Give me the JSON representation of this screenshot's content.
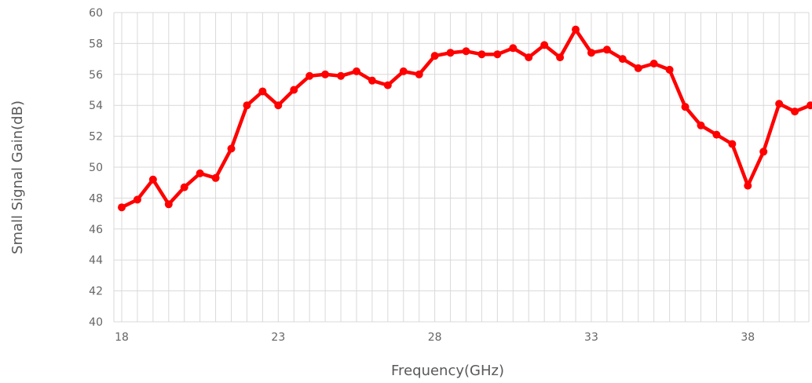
{
  "chart_data": {
    "type": "line",
    "title": "",
    "xlabel": "Frequency(GHz)",
    "ylabel": "Small Signal Gain(dB)",
    "xlim": [
      18,
      40.2
    ],
    "ylim": [
      40,
      60
    ],
    "x_ticks": [
      18,
      23,
      28,
      33,
      38
    ],
    "x_tick_labels": [
      "18",
      "23",
      "28",
      "33",
      "38"
    ],
    "y_ticks": [
      40,
      42,
      44,
      46,
      48,
      50,
      52,
      54,
      56,
      58,
      60
    ],
    "y_tick_labels": [
      "40",
      "42",
      "44",
      "46",
      "48",
      "50",
      "52",
      "54",
      "56",
      "58",
      "60"
    ],
    "x_minor_step": 0.5,
    "grid": true,
    "legend": "none",
    "series": [
      {
        "color": "#ff0000",
        "marker": "circle",
        "x": [
          18,
          18.5,
          19,
          19.5,
          20,
          20.5,
          21,
          21.5,
          22,
          22.5,
          23,
          23.5,
          24,
          24.5,
          25,
          25.5,
          26,
          26.5,
          27,
          27.5,
          28,
          28.5,
          29,
          29.5,
          30,
          30.5,
          31,
          31.5,
          32,
          32.5,
          33,
          33.5,
          34,
          34.5,
          35,
          35.5,
          36,
          36.5,
          37,
          37.5,
          38,
          38.5,
          39,
          39.5,
          40
        ],
        "values": [
          47.4,
          47.9,
          49.2,
          47.6,
          48.7,
          49.6,
          49.3,
          51.2,
          54.0,
          54.9,
          54.0,
          55.0,
          55.9,
          56.0,
          55.9,
          56.2,
          55.6,
          55.3,
          56.2,
          56.0,
          57.2,
          57.4,
          57.5,
          57.3,
          57.3,
          57.7,
          57.1,
          57.9,
          57.1,
          58.9,
          57.4,
          57.6,
          57.0,
          56.4,
          56.7,
          56.3,
          53.9,
          52.7,
          52.1,
          51.5,
          48.8,
          51.0,
          54.1,
          53.6,
          54.0
        ]
      }
    ]
  }
}
